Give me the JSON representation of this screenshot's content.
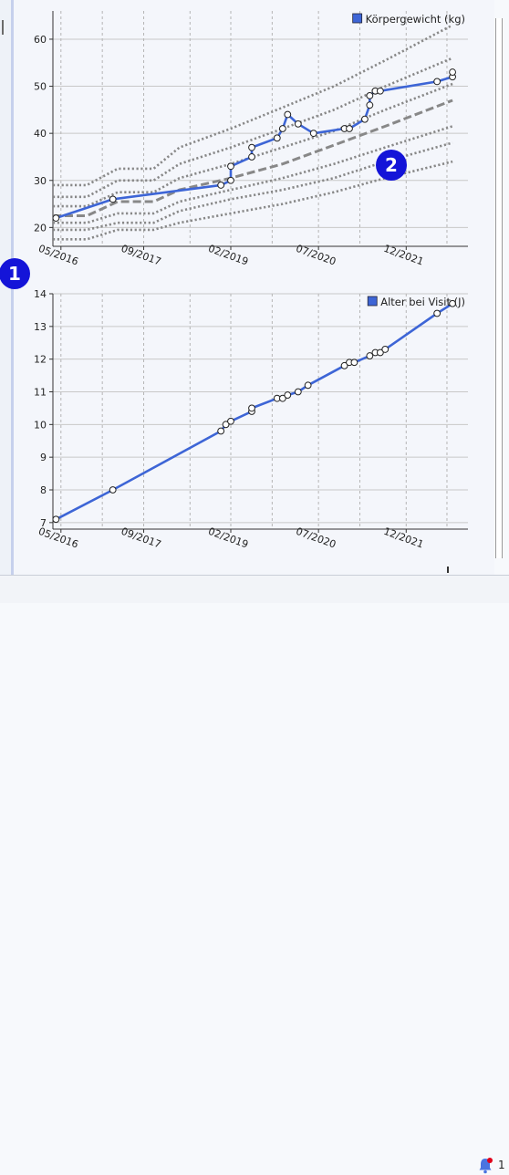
{
  "chart_data": [
    {
      "type": "line",
      "legend": "Körpergewicht (kg)",
      "legend_position": "top-right",
      "grid": true,
      "x_ticks": [
        "05/2016",
        "09/2017",
        "02/2019",
        "07/2020",
        "12/2021"
      ],
      "x_tick_values": [
        2016.33,
        2017.67,
        2019.08,
        2020.5,
        2021.92
      ],
      "xlim": [
        2016.2,
        2022.92
      ],
      "ylim": [
        16,
        66
      ],
      "y_ticks": [
        20,
        30,
        40,
        50,
        60
      ],
      "x_minor_gridlines": [
        2015.83,
        2016.33,
        2017.0,
        2017.67,
        2018.42,
        2019.08,
        2019.75,
        2020.5,
        2021.17,
        2021.92,
        2022.58
      ],
      "series": [
        {
          "name": "Körpergewicht (kg)",
          "style": "measured",
          "color": "#3d65d6",
          "x": [
            2016.25,
            2017.17,
            2018.92,
            2019.08,
            2019.08,
            2019.42,
            2019.42,
            2019.83,
            2019.92,
            2020.0,
            2020.17,
            2020.42,
            2020.92,
            2021.0,
            2021.25,
            2021.33,
            2021.33,
            2021.42,
            2021.42,
            2021.5,
            2022.42,
            2022.67,
            2022.67
          ],
          "y": [
            22,
            26,
            29,
            30,
            33,
            35,
            37,
            39,
            41,
            44,
            42,
            40,
            41,
            41,
            43,
            46,
            48,
            49,
            49,
            49,
            51,
            52,
            53
          ]
        },
        {
          "style": "dotted",
          "color": "#888888",
          "x": [
            2016.2,
            2016.75,
            2017.25,
            2017.83,
            2018.25,
            2019.08,
            2019.92,
            2020.75,
            2021.58,
            2022.67
          ],
          "y": [
            19.5,
            19.5,
            21,
            21,
            23.5,
            26,
            28,
            30.5,
            34,
            38
          ]
        },
        {
          "style": "dashed",
          "color": "#888888",
          "x": [
            2016.2,
            2016.75,
            2017.25,
            2017.83,
            2018.25,
            2019.08,
            2019.92,
            2020.75,
            2021.58,
            2022.67
          ],
          "y": [
            22.5,
            22.5,
            25.5,
            25.5,
            28,
            30.5,
            33.5,
            37.5,
            41.5,
            47
          ]
        },
        {
          "style": "dotted",
          "color": "#888888",
          "x": [
            2016.2,
            2016.75,
            2017.25,
            2017.83,
            2018.25,
            2019.08,
            2019.92,
            2020.75,
            2021.58,
            2022.67
          ],
          "y": [
            26.5,
            26.5,
            30,
            30,
            33.5,
            37,
            41,
            45,
            50,
            56
          ]
        },
        {
          "style": "dotted",
          "color": "#888888",
          "x": [
            2016.2,
            2016.75,
            2017.25,
            2017.83,
            2018.25,
            2019.08,
            2019.92,
            2020.75,
            2021.58,
            2022.67
          ],
          "y": [
            29,
            29,
            32.5,
            32.5,
            37,
            41,
            45.5,
            50,
            55.5,
            63
          ]
        },
        {
          "style": "dotted",
          "color": "#888888",
          "x": [
            2016.2,
            2016.75,
            2017.25,
            2017.83,
            2018.25,
            2019.08,
            2019.92,
            2020.75,
            2021.58,
            2022.67
          ],
          "y": [
            24.5,
            24.5,
            27.5,
            27.5,
            30.5,
            33.5,
            37,
            40.5,
            45,
            50.5
          ]
        },
        {
          "style": "dotted",
          "color": "#888888",
          "x": [
            2016.2,
            2016.75,
            2017.25,
            2017.83,
            2018.25,
            2019.08,
            2019.92,
            2020.75,
            2021.58,
            2022.67
          ],
          "y": [
            21,
            21,
            23,
            23,
            25.5,
            28,
            30.5,
            33.5,
            37,
            41.5
          ]
        },
        {
          "style": "dotted",
          "color": "#888888",
          "x": [
            2016.2,
            2016.75,
            2017.25,
            2017.83,
            2018.25,
            2019.08,
            2019.92,
            2020.75,
            2021.58,
            2022.67
          ],
          "y": [
            17.5,
            17.5,
            19.5,
            19.5,
            21,
            23,
            25,
            27.5,
            30.5,
            34
          ]
        }
      ]
    },
    {
      "type": "line",
      "legend": "Alter bei Visit (J)",
      "legend_position": "top-right",
      "grid": true,
      "x_ticks": [
        "05/2016",
        "09/2017",
        "02/2019",
        "07/2020",
        "12/2021"
      ],
      "x_tick_values": [
        2016.33,
        2017.67,
        2019.08,
        2020.5,
        2021.92
      ],
      "xlim": [
        2016.2,
        2022.92
      ],
      "ylim": [
        6.8,
        14
      ],
      "y_ticks": [
        7,
        8,
        9,
        10,
        11,
        12,
        13,
        14
      ],
      "x_minor_gridlines": [
        2015.83,
        2016.33,
        2017.0,
        2017.67,
        2018.42,
        2019.08,
        2019.75,
        2020.5,
        2021.17,
        2021.92,
        2022.58
      ],
      "series": [
        {
          "name": "Alter bei Visit (J)",
          "style": "measured",
          "color": "#3d65d6",
          "x": [
            2016.25,
            2017.17,
            2018.92,
            2019.0,
            2019.08,
            2019.42,
            2019.42,
            2019.83,
            2019.92,
            2020.0,
            2020.17,
            2020.33,
            2020.92,
            2021.0,
            2021.08,
            2021.33,
            2021.42,
            2021.5,
            2021.58,
            2022.42,
            2022.67
          ],
          "y": [
            7.1,
            8.0,
            9.8,
            10.0,
            10.1,
            10.4,
            10.5,
            10.8,
            10.8,
            10.9,
            11.0,
            11.2,
            11.8,
            11.9,
            11.9,
            12.1,
            12.2,
            12.2,
            12.3,
            13.4,
            13.7
          ]
        }
      ]
    }
  ],
  "badges": [
    {
      "label": "1",
      "color": "#1414d8"
    },
    {
      "label": "2",
      "color": "#1414d8"
    }
  ],
  "status_bar": {
    "notification_count": "1",
    "icon": "bell-icon",
    "dot_color": "#e0001a"
  },
  "colors": {
    "series": "#3d65d6",
    "percentile": "#888888",
    "grid": "#c8c8c8",
    "badge": "#1414d8"
  }
}
